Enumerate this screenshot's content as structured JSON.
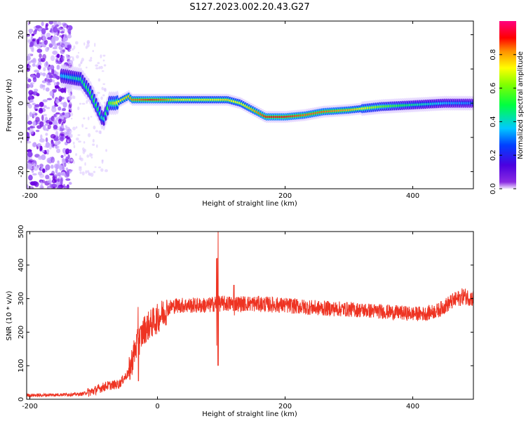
{
  "title": "S127.2023.002.20.43.G27",
  "chart_data": [
    {
      "type": "heatmap",
      "xlabel": "Height of straight line (km)",
      "ylabel": "Frequency (Hz)",
      "xlim": [
        -205,
        495
      ],
      "ylim": [
        -25,
        24
      ],
      "x_ticks": [
        -200,
        0,
        200,
        400
      ],
      "y_ticks": [
        20,
        10,
        0,
        -10,
        -20
      ],
      "colorbar": {
        "label": "Normalized spectral amplitude",
        "range": [
          0,
          1
        ],
        "ticks": [
          "0.0",
          "0.2",
          "0.4",
          "0.6",
          "0.8"
        ],
        "colormap": "rainbow (purple-blue-cyan-green-yellow-red-magenta)"
      },
      "ridge": {
        "name": "",
        "x": [
          -150,
          -120,
          -105,
          -95,
          -85,
          -75,
          -65,
          -55,
          -45,
          -40,
          -30,
          -10,
          10,
          30,
          50,
          80,
          110,
          130,
          150,
          170,
          200,
          230,
          260,
          300,
          350,
          400,
          450,
          495
        ],
        "y": [
          8,
          7,
          3,
          -1,
          -5,
          0,
          0,
          1,
          2,
          1,
          1,
          1,
          1,
          1,
          1,
          1,
          1,
          0,
          -2,
          -4,
          -4,
          -3.5,
          -2.5,
          -2,
          -1,
          -0.5,
          0,
          0
        ],
        "amplitude": [
          0.35,
          0.45,
          0.5,
          0.5,
          0.4,
          0.55,
          0.7,
          0.75,
          0.8,
          0.85,
          0.85,
          0.9,
          0.85,
          0.75,
          0.7,
          0.7,
          0.75,
          0.7,
          0.8,
          0.9,
          0.9,
          0.85,
          0.85,
          0.8,
          0.6,
          0.45,
          0.35,
          0.3
        ]
      },
      "grid": false
    },
    {
      "type": "line",
      "xlabel": "Height of straight line (km)",
      "ylabel": "SNR (10 * v/v)",
      "xlim": [
        -205,
        495
      ],
      "ylim": [
        0,
        500
      ],
      "x_ticks": [
        -200,
        0,
        200,
        400
      ],
      "y_ticks": [
        0,
        100,
        200,
        300,
        400,
        500
      ],
      "series": [
        {
          "name": "",
          "color": "#ee3322",
          "x": [
            -205,
            -180,
            -150,
            -120,
            -100,
            -80,
            -60,
            -45,
            -35,
            -20,
            -10,
            0,
            10,
            20,
            30,
            50,
            80,
            90,
            95,
            100,
            120,
            150,
            200,
            250,
            300,
            350,
            400,
            420,
            440,
            460,
            480,
            495
          ],
          "y": [
            12,
            12,
            14,
            15,
            25,
            40,
            45,
            80,
            150,
            210,
            225,
            240,
            260,
            275,
            280,
            280,
            280,
            285,
            500,
            285,
            285,
            285,
            280,
            272,
            268,
            262,
            255,
            255,
            265,
            290,
            308,
            300
          ],
          "spikes": [
            {
              "x": 95,
              "max": 500,
              "min": 100
            },
            {
              "x": 93,
              "max": 420,
              "min": 160
            },
            {
              "x": -30,
              "max": 275,
              "min": 55
            },
            {
              "x": 120,
              "max": 340,
              "min": 250
            }
          ]
        }
      ],
      "grid": false
    }
  ]
}
